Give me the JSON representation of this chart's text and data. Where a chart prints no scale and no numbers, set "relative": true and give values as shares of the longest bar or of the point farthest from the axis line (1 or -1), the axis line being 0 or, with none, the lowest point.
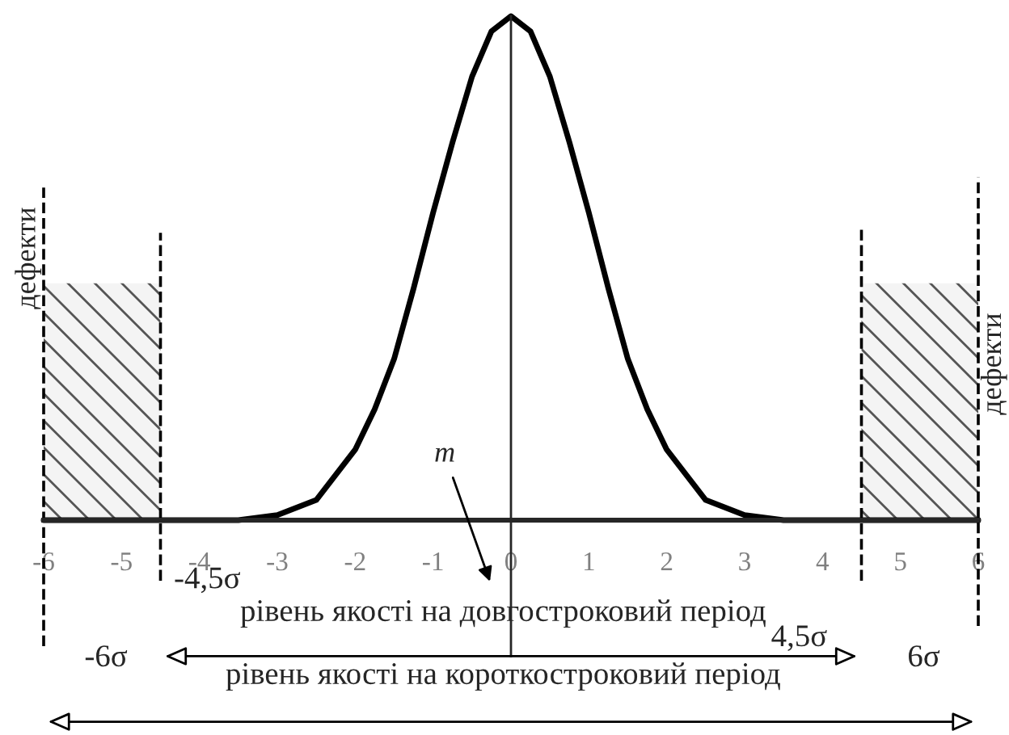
{
  "chart_data": {
    "type": "line",
    "relative": true,
    "x": [
      -6,
      -5,
      -4,
      -3.5,
      -3,
      -2.5,
      -2,
      -1.75,
      -1.5,
      -1.25,
      -1,
      -0.75,
      -0.5,
      -0.25,
      0,
      0.25,
      0.5,
      0.75,
      1,
      1.25,
      1.5,
      1.75,
      2,
      2.5,
      3,
      3.5,
      4,
      5,
      6
    ],
    "series": [
      {
        "color": "#000000",
        "values": [
          0,
          0,
          0,
          0,
          0.01,
          0.04,
          0.14,
          0.22,
          0.32,
          0.46,
          0.61,
          0.75,
          0.88,
          0.97,
          1,
          0.97,
          0.88,
          0.75,
          0.61,
          0.46,
          0.32,
          0.22,
          0.14,
          0.04,
          0.01,
          0,
          0,
          0,
          0
        ]
      }
    ],
    "xlim": [
      -6,
      6
    ],
    "xticks": [
      -6,
      -5,
      -4,
      -3,
      -2,
      -1,
      0,
      1,
      2,
      3,
      4,
      5,
      6
    ],
    "marker": "none",
    "line_style": "solid",
    "ref_lines": [
      {
        "axis": "x",
        "value": -6,
        "label": "-6σ",
        "line_style": "dashed",
        "color": "#000000"
      },
      {
        "axis": "x",
        "value": -4.5,
        "label": "-4,5σ",
        "line_style": "dashed",
        "color": "#000000"
      },
      {
        "axis": "x",
        "value": 4.5,
        "label": "4,5σ",
        "line_style": "dashed",
        "color": "#000000"
      },
      {
        "axis": "x",
        "value": 6,
        "label": "6σ",
        "line_style": "dashed",
        "color": "#000000"
      }
    ],
    "bands": [
      {
        "axis": "x",
        "from": -6,
        "to": -4.5,
        "label": "дефекти"
      },
      {
        "axis": "x",
        "from": 4.5,
        "to": 6,
        "label": "дефекти"
      }
    ],
    "annotations": [
      "m",
      "рівень якості на довгостроковий період",
      "рівень якості на короткостроковий період"
    ]
  }
}
